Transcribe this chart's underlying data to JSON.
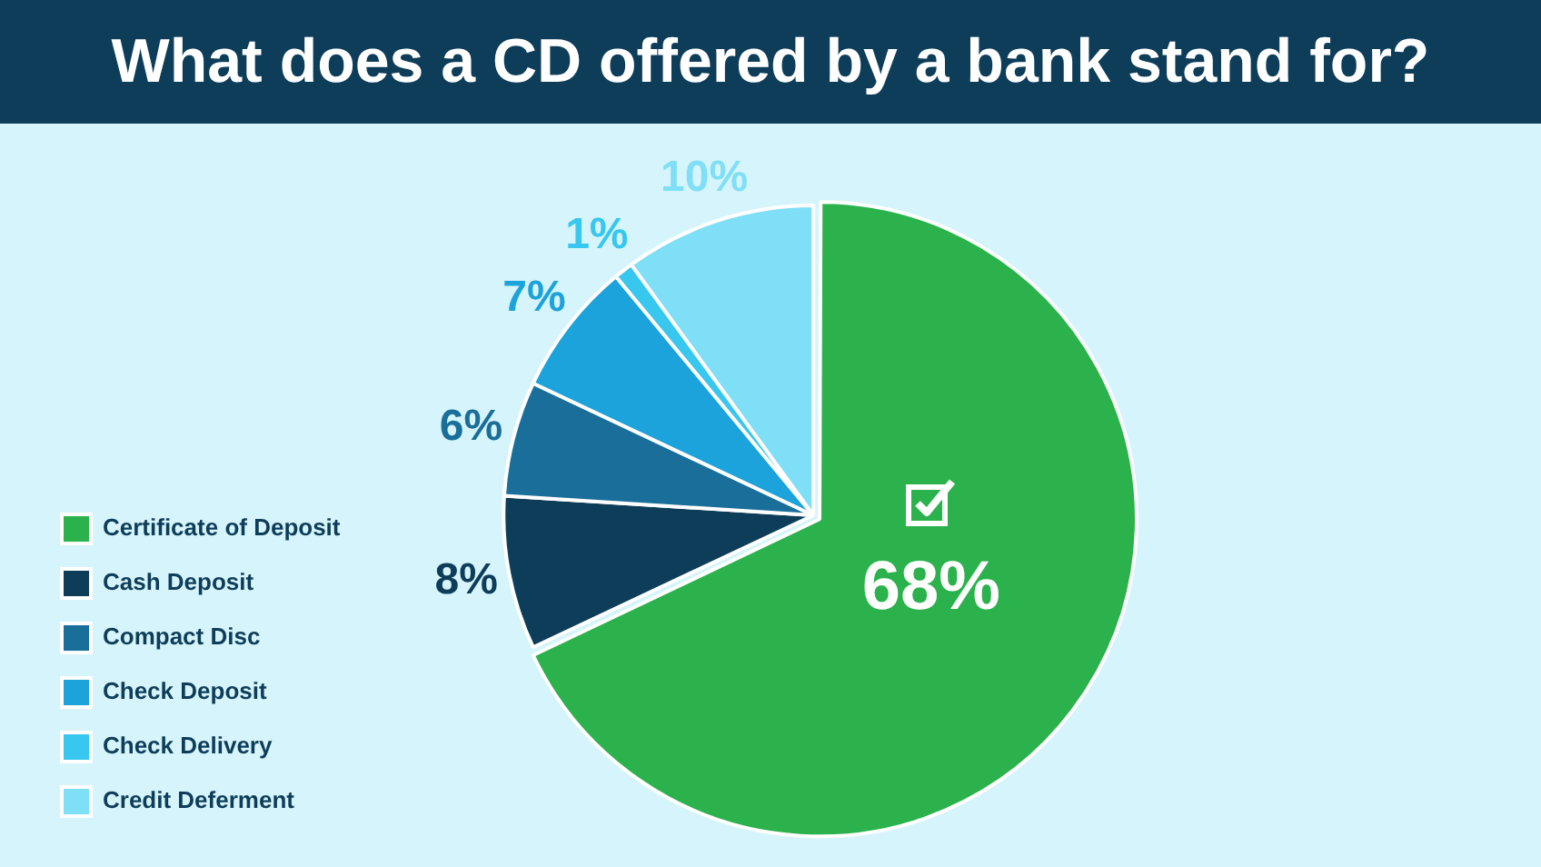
{
  "chart_data": {
    "type": "pie",
    "title": "What does a CD offered by a bank stand for?",
    "categories": [
      "Certificate of Deposit",
      "Cash Deposit",
      "Compact Disc",
      "Check Deposit",
      "Check Delivery",
      "Credit Deferment"
    ],
    "values": [
      68,
      8,
      6,
      7,
      1,
      10
    ],
    "colors": [
      "#2bb24c",
      "#0e3d5a",
      "#1a6f9a",
      "#1ca3dc",
      "#38c7ef",
      "#7fdff7"
    ],
    "value_labels": [
      "68%",
      "8%",
      "6%",
      "7%",
      "1%",
      "10%"
    ],
    "legend": "left"
  }
}
